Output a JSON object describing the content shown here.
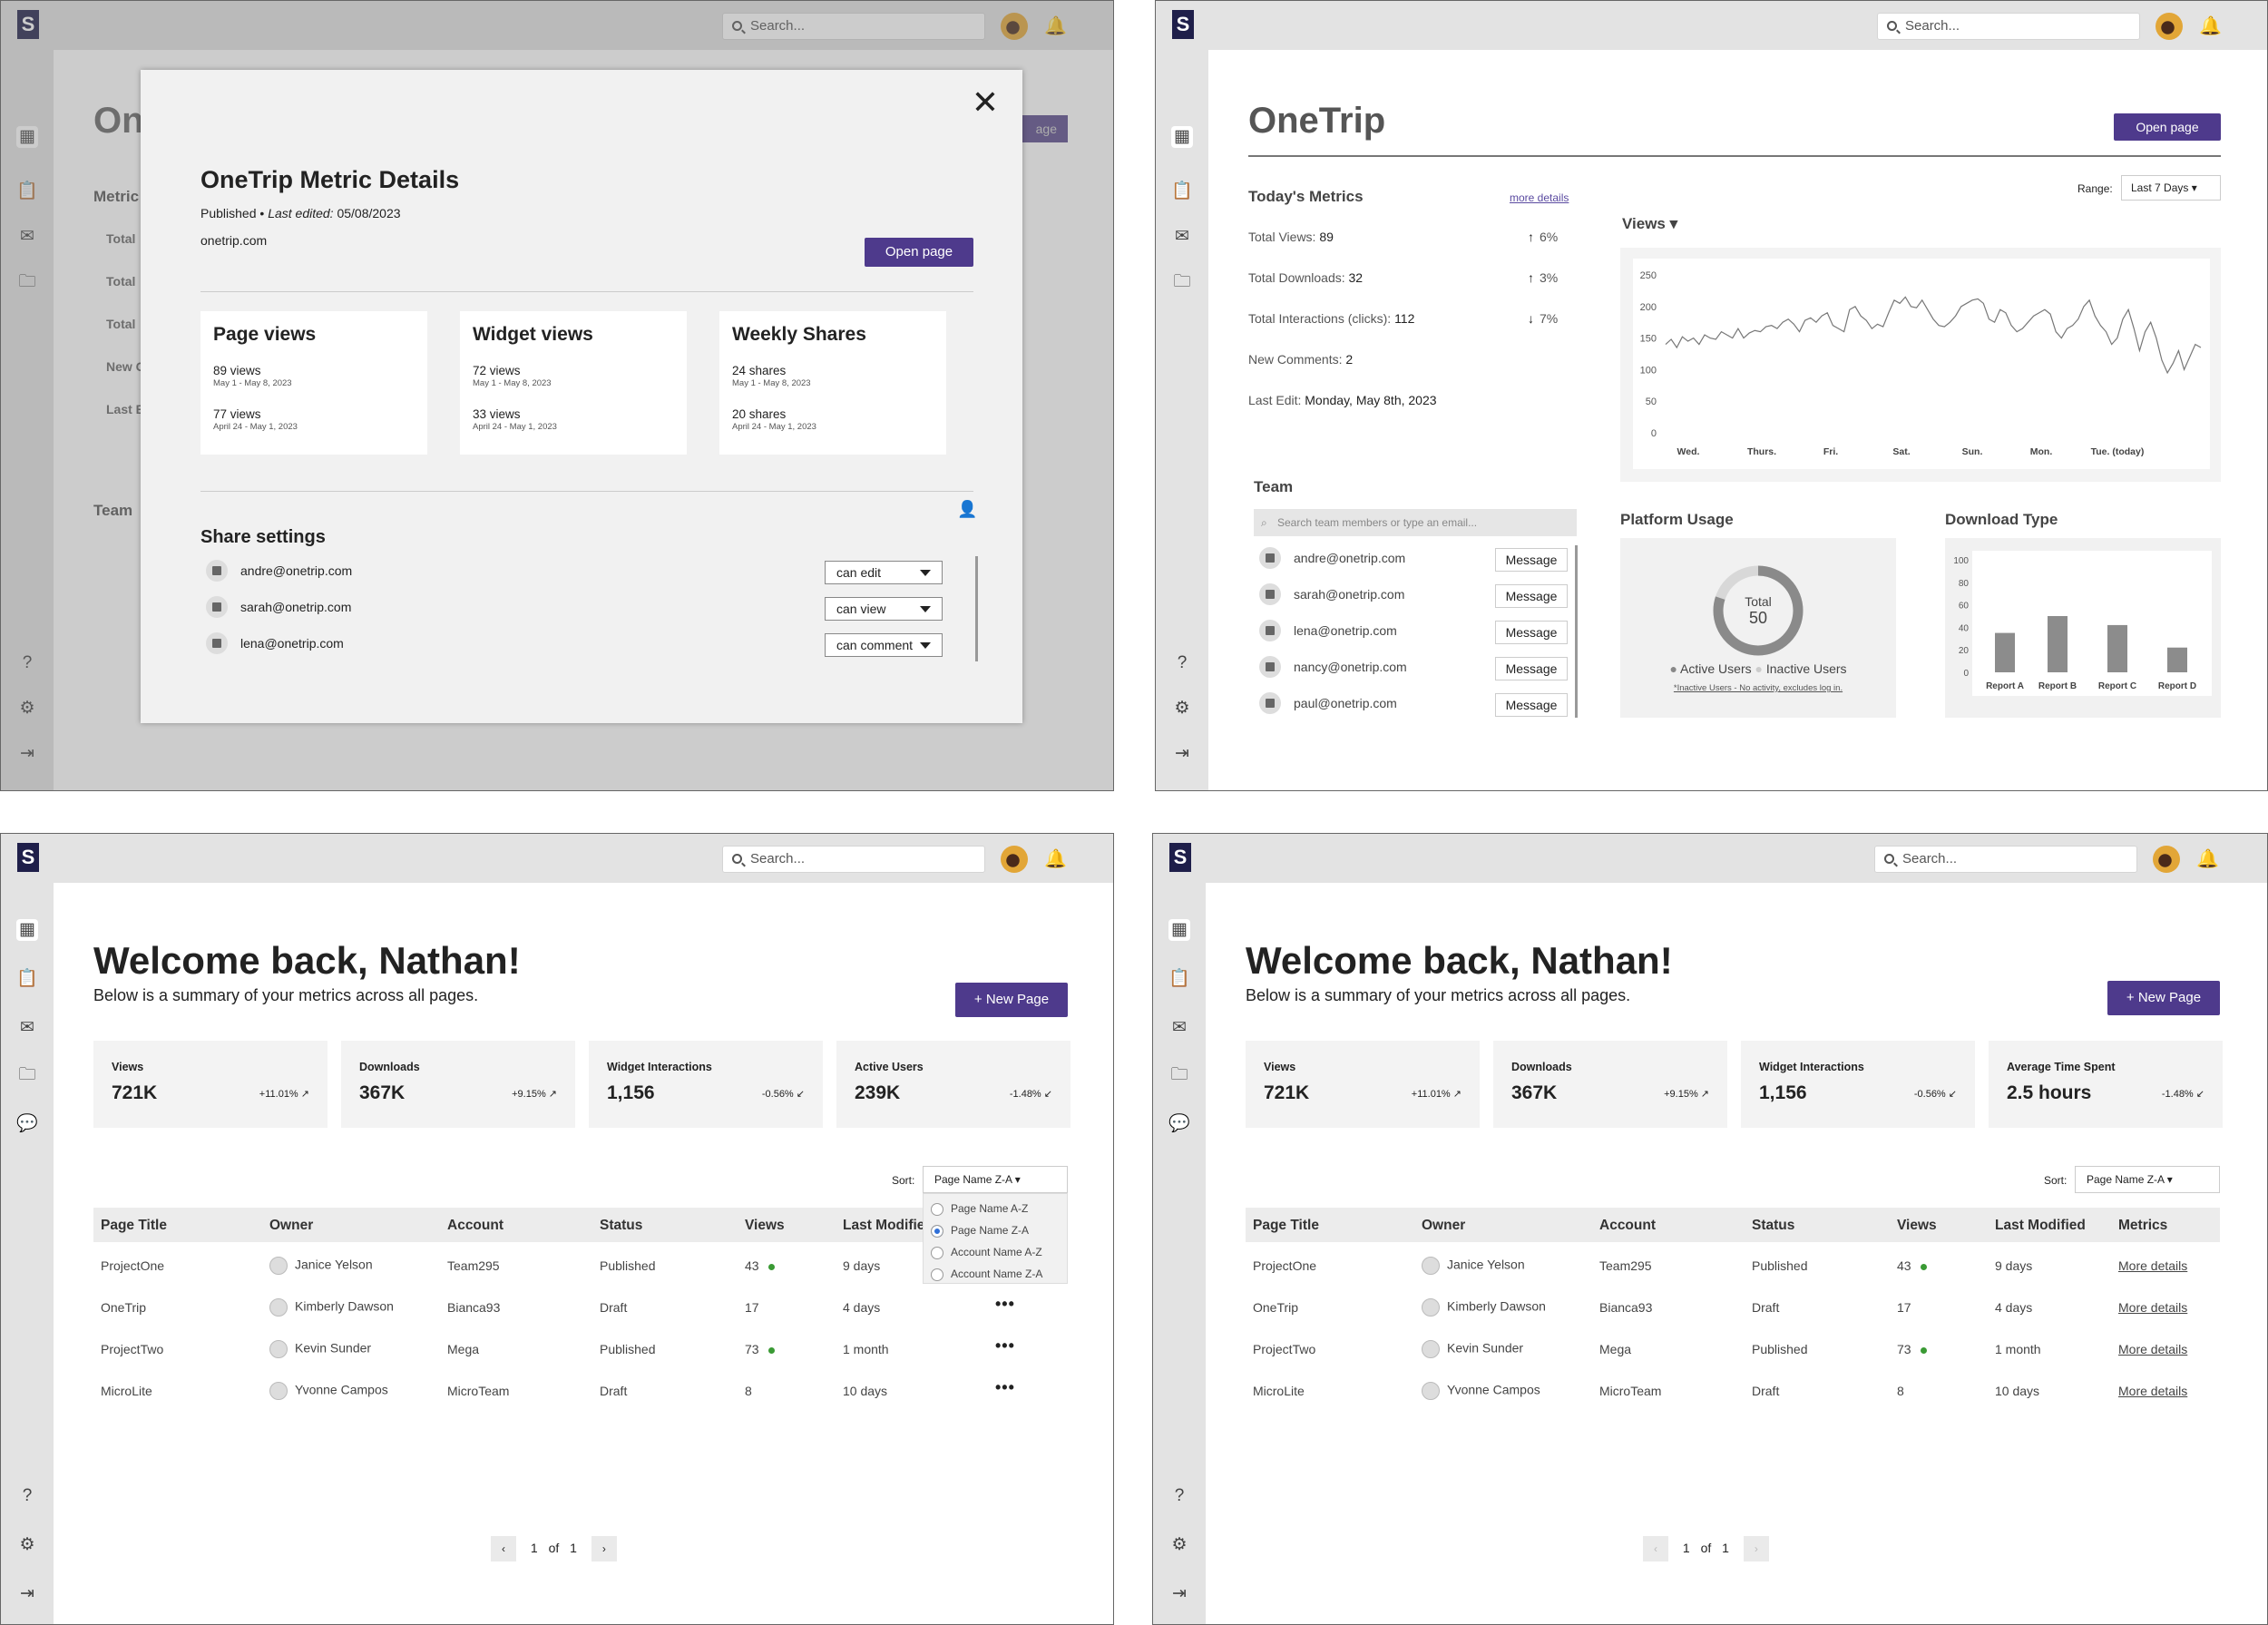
{
  "search": {
    "placeholder": "Search..."
  },
  "p1": {
    "bg_title": "On",
    "bg_btn": "age",
    "bg_metrics": "Metric",
    "bg_rows": [
      "Total",
      "Total",
      "Total",
      "New C",
      "Last E"
    ],
    "bg_team": "Team",
    "modal": {
      "title": "OneTrip Metric Details",
      "status": "Published",
      "sep": "•",
      "edited_label": "Last edited:",
      "edited_date": "05/08/2023",
      "url": "onetrip.com",
      "open_btn": "Open page",
      "cards": [
        {
          "title": "Page views",
          "a1": "89 views",
          "b1": "May 1 - May 8, 2023",
          "a2": "77 views",
          "b2": "April 24 - May 1, 2023"
        },
        {
          "title": "Widget views",
          "a1": "72 views",
          "b1": "May 1 - May 8, 2023",
          "a2": "33 views",
          "b2": "April 24 - May 1, 2023"
        },
        {
          "title": "Weekly Shares",
          "a1": "24 shares",
          "b1": "May 1 - May 8, 2023",
          "a2": "20 shares",
          "b2": "April 24 - May 1, 2023"
        }
      ],
      "share_title": "Share settings",
      "shares": [
        {
          "email": "andre@onetrip.com",
          "perm": "can edit"
        },
        {
          "email": "sarah@onetrip.com",
          "perm": "can view"
        },
        {
          "email": "lena@onetrip.com",
          "perm": "can comment"
        }
      ]
    }
  },
  "p2": {
    "title": "OneTrip",
    "open_btn": "Open page",
    "metrics_title": "Today's Metrics",
    "more": "more details",
    "metrics": [
      {
        "label": "Total Views:",
        "value": "89",
        "chg": "6%",
        "dir": "up"
      },
      {
        "label": "Total Downloads:",
        "value": "32",
        "chg": "3%",
        "dir": "up"
      },
      {
        "label": "Total Interactions (clicks):",
        "value": "112",
        "chg": "7%",
        "dir": "down"
      },
      {
        "label": "New Comments:",
        "value": "2",
        "chg": "",
        "dir": ""
      },
      {
        "label": "Last Edit:",
        "value": "Monday, May 8th, 2023",
        "chg": "",
        "dir": ""
      }
    ],
    "range_label": "Range:",
    "range_value": "Last 7 Days",
    "views_label": "Views",
    "team_title": "Team",
    "team_search": "Search team members or type an email...",
    "team": [
      "andre@onetrip.com",
      "sarah@onetrip.com",
      "lena@onetrip.com",
      "nancy@onetrip.com",
      "paul@onetrip.com"
    ],
    "msg": "Message",
    "usage_title": "Platform Usage",
    "donut_label": "Total",
    "donut_value": "50",
    "legend_a": "Active Users",
    "legend_b": "Inactive Users",
    "usage_note": "*Inactive Users - No activity, excludes log in.",
    "dl_title": "Download Type"
  },
  "chart_data": [
    {
      "type": "line",
      "title": "Views",
      "x_ticks": [
        "Wed.",
        "Thurs.",
        "Fri.",
        "Sat.",
        "Sun.",
        "Mon.",
        "Tue. (today)"
      ],
      "ylim": [
        0,
        250
      ],
      "y_ticks": [
        0,
        50,
        100,
        150,
        200,
        250
      ],
      "series": [
        {
          "values": [
            140,
            148,
            135,
            152,
            145,
            150,
            140,
            155,
            150,
            148,
            160,
            155,
            150,
            165,
            150,
            158,
            162,
            160,
            168,
            170,
            165,
            175,
            180,
            172,
            160,
            178,
            182,
            175,
            185,
            190,
            170,
            165,
            160,
            195,
            200,
            185,
            178,
            165,
            172,
            168,
            190,
            210,
            205,
            215,
            200,
            198,
            210,
            195,
            180,
            170,
            168,
            175,
            185,
            200,
            205,
            210,
            212,
            205,
            180,
            175,
            195,
            190,
            170,
            160,
            165,
            175,
            185,
            190,
            195,
            188,
            160,
            150,
            165,
            170,
            180,
            200,
            210,
            185,
            170,
            160,
            140,
            150,
            180,
            195,
            165,
            130,
            160,
            175,
            150,
            115,
            95,
            110,
            130,
            100,
            120,
            140,
            135
          ]
        }
      ]
    },
    {
      "type": "pie",
      "title": "Platform Usage",
      "categories": [
        "Active Users",
        "Inactive Users"
      ],
      "values": [
        40,
        10
      ],
      "total": 50
    },
    {
      "type": "bar",
      "title": "Download Type",
      "categories": [
        "Report A",
        "Report B",
        "Report C",
        "Report D"
      ],
      "values": [
        35,
        50,
        42,
        22
      ],
      "ylim": [
        0,
        100
      ],
      "y_ticks": [
        0,
        20,
        40,
        60,
        80,
        100
      ]
    }
  ],
  "p3": {
    "welcome": "Welcome back, Nathan!",
    "sub": "Below is a summary of your metrics across all pages.",
    "new_page": "+  New Page",
    "cards": [
      {
        "label": "Views",
        "value": "721K",
        "chg": "+11.01% ↗"
      },
      {
        "label": "Downloads",
        "value": "367K",
        "chg": "+9.15% ↗"
      },
      {
        "label": "Widget Interactions",
        "value": "1,156",
        "chg": "-0.56% ↙"
      },
      {
        "label": "Active Users",
        "value": "239K",
        "chg": "-1.48% ↙"
      }
    ],
    "sort_label": "Sort:",
    "sort_value": "Page Name Z-A",
    "sort_options": [
      "Page Name A-Z",
      "Page Name Z-A",
      "Account Name A-Z",
      "Account Name Z-A"
    ],
    "headers": [
      "Page Title",
      "Owner",
      "Account",
      "Status",
      "Views",
      "Last Modified"
    ],
    "rows": [
      {
        "title": "ProjectOne",
        "owner": "Janice Yelson",
        "account": "Team295",
        "status": "Published",
        "views": "43",
        "dot": true,
        "mod": "9 days"
      },
      {
        "title": "OneTrip",
        "owner": "Kimberly Dawson",
        "account": "Bianca93",
        "status": "Draft",
        "views": "17",
        "dot": false,
        "mod": "4 days"
      },
      {
        "title": "ProjectTwo",
        "owner": "Kevin Sunder",
        "account": "Mega",
        "status": "Published",
        "views": "73",
        "dot": true,
        "mod": "1 month"
      },
      {
        "title": "MicroLite",
        "owner": "Yvonne Campos",
        "account": "MicroTeam",
        "status": "Draft",
        "views": "8",
        "dot": false,
        "mod": "10 days"
      }
    ],
    "page_cur": "1",
    "page_of": "of",
    "page_total": "1"
  },
  "p4": {
    "welcome": "Welcome back, Nathan!",
    "sub": "Below is a summary of your metrics across all pages.",
    "new_page": "+  New Page",
    "cards": [
      {
        "label": "Views",
        "value": "721K",
        "chg": "+11.01% ↗"
      },
      {
        "label": "Downloads",
        "value": "367K",
        "chg": "+9.15% ↗"
      },
      {
        "label": "Widget Interactions",
        "value": "1,156",
        "chg": "-0.56% ↙"
      },
      {
        "label": "Average Time Spent",
        "value": "2.5 hours",
        "chg": "-1.48% ↙"
      }
    ],
    "sort_label": "Sort:",
    "sort_value": "Page Name Z-A",
    "headers": [
      "Page Title",
      "Owner",
      "Account",
      "Status",
      "Views",
      "Last Modified",
      "Metrics"
    ],
    "more": "More details",
    "page_cur": "1",
    "page_of": "of",
    "page_total": "1"
  },
  "colors": {
    "accent": "#4e3a8c",
    "topbar": "#e3e3e3",
    "green": "#3a9a34",
    "bar": "#8c8c8c"
  }
}
